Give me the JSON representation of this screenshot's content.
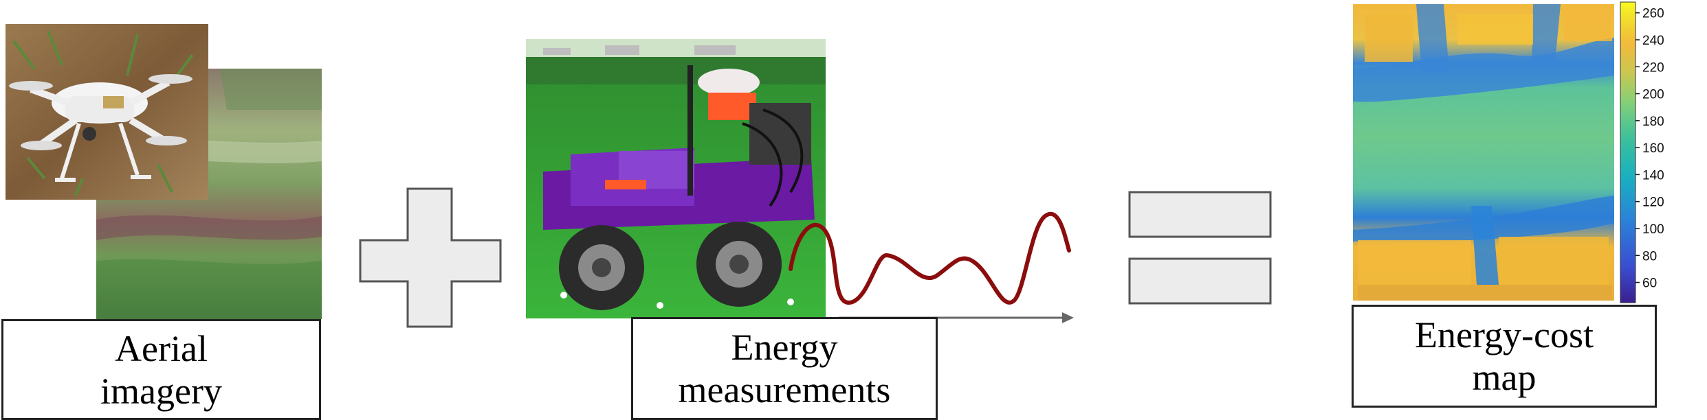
{
  "panels": {
    "aerial": {
      "label_line1": "Aerial",
      "label_line2": "imagery"
    },
    "energy": {
      "label_line1": "Energy",
      "label_line2": "measurements"
    },
    "costmap": {
      "label_line1": "Energy-cost",
      "label_line2": "map"
    }
  },
  "operators": {
    "plus": "plus",
    "equals": "equals"
  },
  "colorbar": {
    "ticks": [
      "260",
      "240",
      "220",
      "200",
      "180",
      "160",
      "140",
      "120",
      "100",
      "80",
      "60"
    ],
    "range": [
      45,
      268
    ],
    "colormap": [
      "#3b1f8f",
      "#3a4ed0",
      "#2a84d8",
      "#19b0c0",
      "#3fc09a",
      "#7fd07a",
      "#c7c852",
      "#f2b93c",
      "#f3e02a",
      "#f9fb1e"
    ]
  },
  "colors": {
    "energy_curve": "#8b0d0d",
    "operator_fill": "#ececec",
    "operator_stroke": "#555555",
    "axis_arrow": "#666666"
  }
}
